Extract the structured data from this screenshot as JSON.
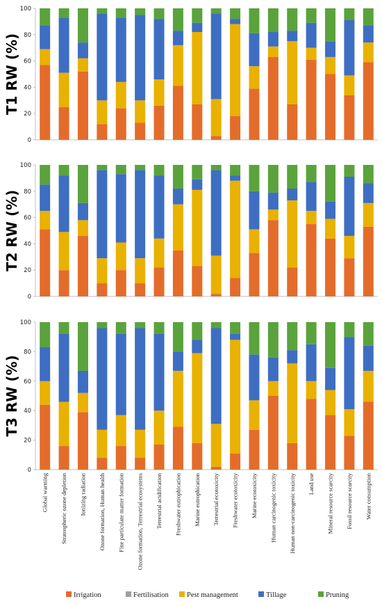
{
  "chart_data": {
    "type": "bar",
    "stacked": true,
    "categories": [
      "Global warming",
      "Stratospheric ozone depletion",
      "Ionizing radiation",
      "Ozone formation, Human health",
      "Fine particulate matter formation",
      "Ozone formation, Terrestrial ecosystems",
      "Terrestrial acidification",
      "Freshwater eutrophication",
      "Marine eutrophication",
      "Terrestrial ecotoxicity",
      "Freshwater ecotoxicity",
      "Marine ecotoxicity",
      "Human carcinogenic toxicity",
      "Human non-carcinogenic toxicity",
      "Land use",
      "Mineral resource scarcity",
      "Fossil resource scarcity",
      "Water consumption"
    ],
    "legend": [
      {
        "name": "Irrigation",
        "color": "#E46C2B"
      },
      {
        "name": "Fertilisation",
        "color": "#9E9E9E"
      },
      {
        "name": "Pest management",
        "color": "#E9B100"
      },
      {
        "name": "Tillage",
        "color": "#3E6EC2"
      },
      {
        "name": "Pruning",
        "color": "#5AA33C"
      }
    ],
    "legend_placement": "bottom",
    "ylim": [
      0,
      100
    ],
    "yticks": [
      0,
      20,
      40,
      60,
      80,
      100
    ],
    "panels": [
      {
        "ylabel": "T1 RW (%)",
        "series": [
          {
            "name": "Irrigation",
            "values": [
              57,
              25,
              52,
              12,
              24,
              13,
              26,
              41,
              27,
              3,
              18,
              39,
              63,
              27,
              61,
              50,
              34,
              59
            ]
          },
          {
            "name": "Fertilisation",
            "values": [
              0,
              0,
              0,
              0,
              0,
              0,
              0,
              0,
              0,
              0,
              0,
              0,
              0,
              0,
              0,
              0,
              0,
              0
            ]
          },
          {
            "name": "Pest management",
            "values": [
              12,
              26,
              10,
              18,
              20,
              17,
              20,
              31,
              55,
              28,
              70,
              17,
              8,
              48,
              9,
              13,
              15,
              15
            ]
          },
          {
            "name": "Tillage",
            "values": [
              18,
              42,
              12,
              66,
              49,
              65,
              46,
              11,
              7,
              65,
              4,
              25,
              11,
              8,
              19,
              12,
              42,
              13
            ]
          },
          {
            "name": "Pruning",
            "values": [
              13,
              7,
              26,
              4,
              7,
              5,
              8,
              17,
              11,
              4,
              8,
              19,
              18,
              17,
              11,
              25,
              9,
              13
            ]
          }
        ]
      },
      {
        "ylabel": "T2 RW (%)",
        "series": [
          {
            "name": "Irrigation",
            "values": [
              51,
              20,
              46,
              10,
              20,
              10,
              22,
              35,
              23,
              2,
              14,
              33,
              58,
              22,
              55,
              44,
              29,
              53
            ]
          },
          {
            "name": "Fertilisation",
            "values": [
              0,
              0,
              0,
              0,
              0,
              0,
              0,
              0,
              0,
              0,
              0,
              0,
              0,
              0,
              0,
              0,
              0,
              0
            ]
          },
          {
            "name": "Pest management",
            "values": [
              14,
              29,
              12,
              19,
              21,
              19,
              22,
              35,
              58,
              29,
              74,
              18,
              8,
              51,
              10,
              15,
              17,
              18
            ]
          },
          {
            "name": "Tillage",
            "values": [
              20,
              43,
              13,
              67,
              52,
              67,
              48,
              12,
              8,
              65,
              4,
              29,
              13,
              9,
              22,
              13,
              45,
              15
            ]
          },
          {
            "name": "Pruning",
            "values": [
              15,
              8,
              29,
              4,
              7,
              4,
              8,
              18,
              11,
              4,
              8,
              20,
              21,
              18,
              13,
              28,
              9,
              14
            ]
          }
        ]
      },
      {
        "ylabel": "T3 RW (%)",
        "series": [
          {
            "name": "Irrigation",
            "values": [
              44,
              16,
              39,
              8,
              16,
              8,
              17,
              29,
              18,
              2,
              11,
              27,
              50,
              18,
              48,
              37,
              23,
              46
            ]
          },
          {
            "name": "Fertilisation",
            "values": [
              0,
              0,
              0,
              0,
              0,
              0,
              0,
              0,
              0,
              0,
              0,
              0,
              0,
              0,
              0,
              0,
              0,
              0
            ]
          },
          {
            "name": "Pest management",
            "values": [
              16,
              30,
              13,
              19,
              21,
              19,
              23,
              38,
              61,
              29,
              77,
              20,
              10,
              54,
              12,
              17,
              18,
              21
            ]
          },
          {
            "name": "Tillage",
            "values": [
              23,
              46,
              15,
              69,
              55,
              69,
              52,
              13,
              9,
              65,
              4,
              31,
              16,
              9,
              25,
              15,
              49,
              17
            ]
          },
          {
            "name": "Pruning",
            "values": [
              17,
              8,
              33,
              4,
              8,
              4,
              8,
              20,
              12,
              4,
              8,
              22,
              24,
              19,
              15,
              31,
              10,
              16
            ]
          }
        ]
      }
    ]
  }
}
